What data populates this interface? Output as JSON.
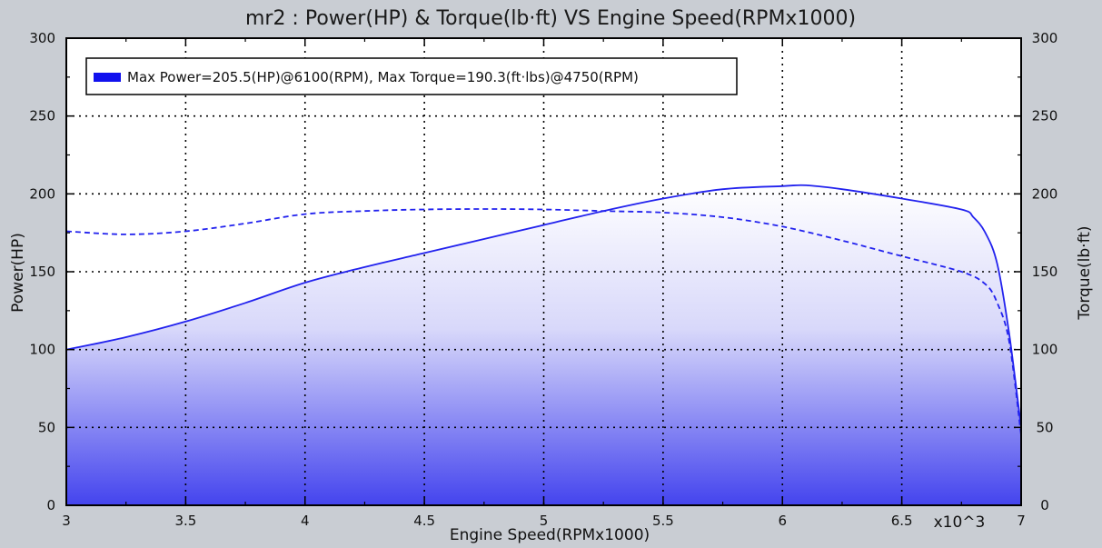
{
  "chart_data": {
    "type": "line",
    "title": "mr2 : Power(HP) & Torque(lb·ft) VS Engine Speed(RPMx1000)",
    "xlabel": "Engine Speed(RPMx1000)",
    "ylabel": "Power(HP)",
    "ylabel_right": "Torque(lb·ft)",
    "x_multiplier_label": "x10^3",
    "xlim": [
      3,
      7
    ],
    "ylim": [
      0,
      300
    ],
    "ylim_right": [
      0,
      300
    ],
    "x_ticks": [
      "3",
      "3.5",
      "4",
      "4.5",
      "5",
      "5.5",
      "6",
      "6.5",
      "7"
    ],
    "x_tick_values": [
      3,
      3.5,
      4,
      4.5,
      5,
      5.5,
      6,
      6.5,
      7
    ],
    "y_ticks": [
      "0",
      "50",
      "100",
      "150",
      "200",
      "250",
      "300"
    ],
    "y_tick_values": [
      0,
      50,
      100,
      150,
      200,
      250,
      300
    ],
    "grid": true,
    "legend": {
      "position": "top-left",
      "text": "Max Power=205.5(HP)@6100(RPM), Max Torque=190.3(ft·lbs)@4750(RPM)"
    },
    "series": [
      {
        "line_style": "solid",
        "color": "#2222ee",
        "fill": true,
        "x": [
          3.0,
          3.25,
          3.5,
          3.75,
          4.0,
          4.25,
          4.5,
          4.75,
          5.0,
          5.25,
          5.5,
          5.75,
          6.0,
          6.1,
          6.25,
          6.5,
          6.75,
          6.8,
          6.85,
          6.9,
          6.95,
          7.0
        ],
        "y": [
          100,
          108,
          118,
          130,
          143,
          153,
          162,
          171,
          180,
          189,
          197,
          203,
          205,
          205.5,
          203,
          197,
          190,
          185,
          175,
          155,
          110,
          50
        ]
      },
      {
        "line_style": "dashed",
        "color": "#2222ee",
        "fill": false,
        "x": [
          3.0,
          3.25,
          3.5,
          3.75,
          4.0,
          4.25,
          4.5,
          4.75,
          5.0,
          5.25,
          5.5,
          5.75,
          6.0,
          6.25,
          6.5,
          6.75,
          6.85,
          6.9,
          6.95,
          7.0
        ],
        "y": [
          176,
          174,
          176,
          181,
          187,
          189,
          190,
          190.3,
          190,
          189,
          188,
          185,
          179,
          170,
          160,
          150,
          142,
          130,
          105,
          45
        ]
      }
    ]
  },
  "colors": {
    "background": "#c9cdd3",
    "plot_bg": "#ffffff",
    "fill_bottom": "#4444ee",
    "line": "#2222ee",
    "legend_swatch": "#1111ee"
  }
}
